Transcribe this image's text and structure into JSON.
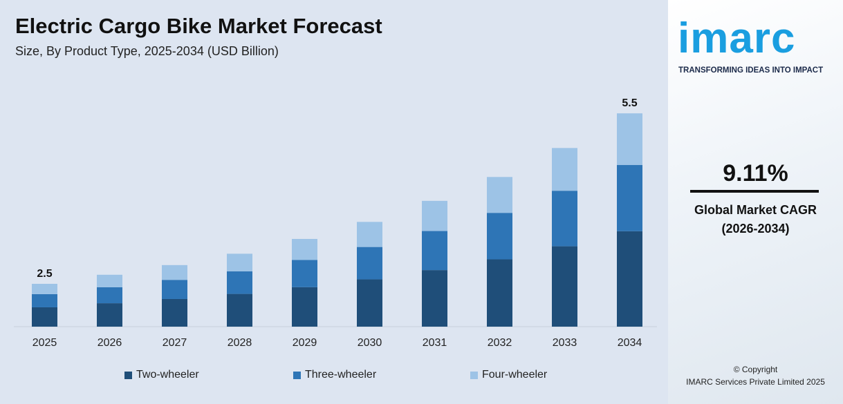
{
  "title": "Electric Cargo Bike Market Forecast",
  "subtitle": "Size, By Product Type, 2025-2034 (USD Billion)",
  "brand": {
    "logo": "imarc",
    "tagline": "TRANSFORMING IDEAS INTO IMPACT",
    "color": "#1a9ee0"
  },
  "cagr": {
    "value": "9.11%",
    "label": "Global Market CAGR",
    "period": "(2026-2034)"
  },
  "copyright": {
    "line1": "© Copyright",
    "line2": "IMARC Services Private Limited 2025"
  },
  "chart_data": {
    "type": "bar",
    "stacked": true,
    "categories": [
      "2025",
      "2026",
      "2027",
      "2028",
      "2029",
      "2030",
      "2031",
      "2032",
      "2033",
      "2034"
    ],
    "series": [
      {
        "name": "Two-wheeler",
        "color": "#1f4e79",
        "values": [
          1.13,
          1.2,
          1.27,
          1.36,
          1.48,
          1.62,
          1.78,
          1.97,
          2.2,
          2.46
        ]
      },
      {
        "name": "Three-wheeler",
        "color": "#2e75b6",
        "values": [
          0.77,
          0.82,
          0.88,
          0.94,
          1.02,
          1.11,
          1.23,
          1.36,
          1.52,
          1.71
        ]
      },
      {
        "name": "Four-wheeler",
        "color": "#9dc3e6",
        "values": [
          0.6,
          0.64,
          0.68,
          0.73,
          0.79,
          0.86,
          0.95,
          1.05,
          1.17,
          1.33
        ]
      }
    ],
    "totals": [
      2.5,
      2.66,
      2.83,
      3.03,
      3.29,
      3.59,
      3.96,
      4.38,
      4.89,
      5.5
    ],
    "data_labels": {
      "2025": "2.5",
      "2034": "5.5"
    },
    "legend": "bottom",
    "grid": false
  }
}
